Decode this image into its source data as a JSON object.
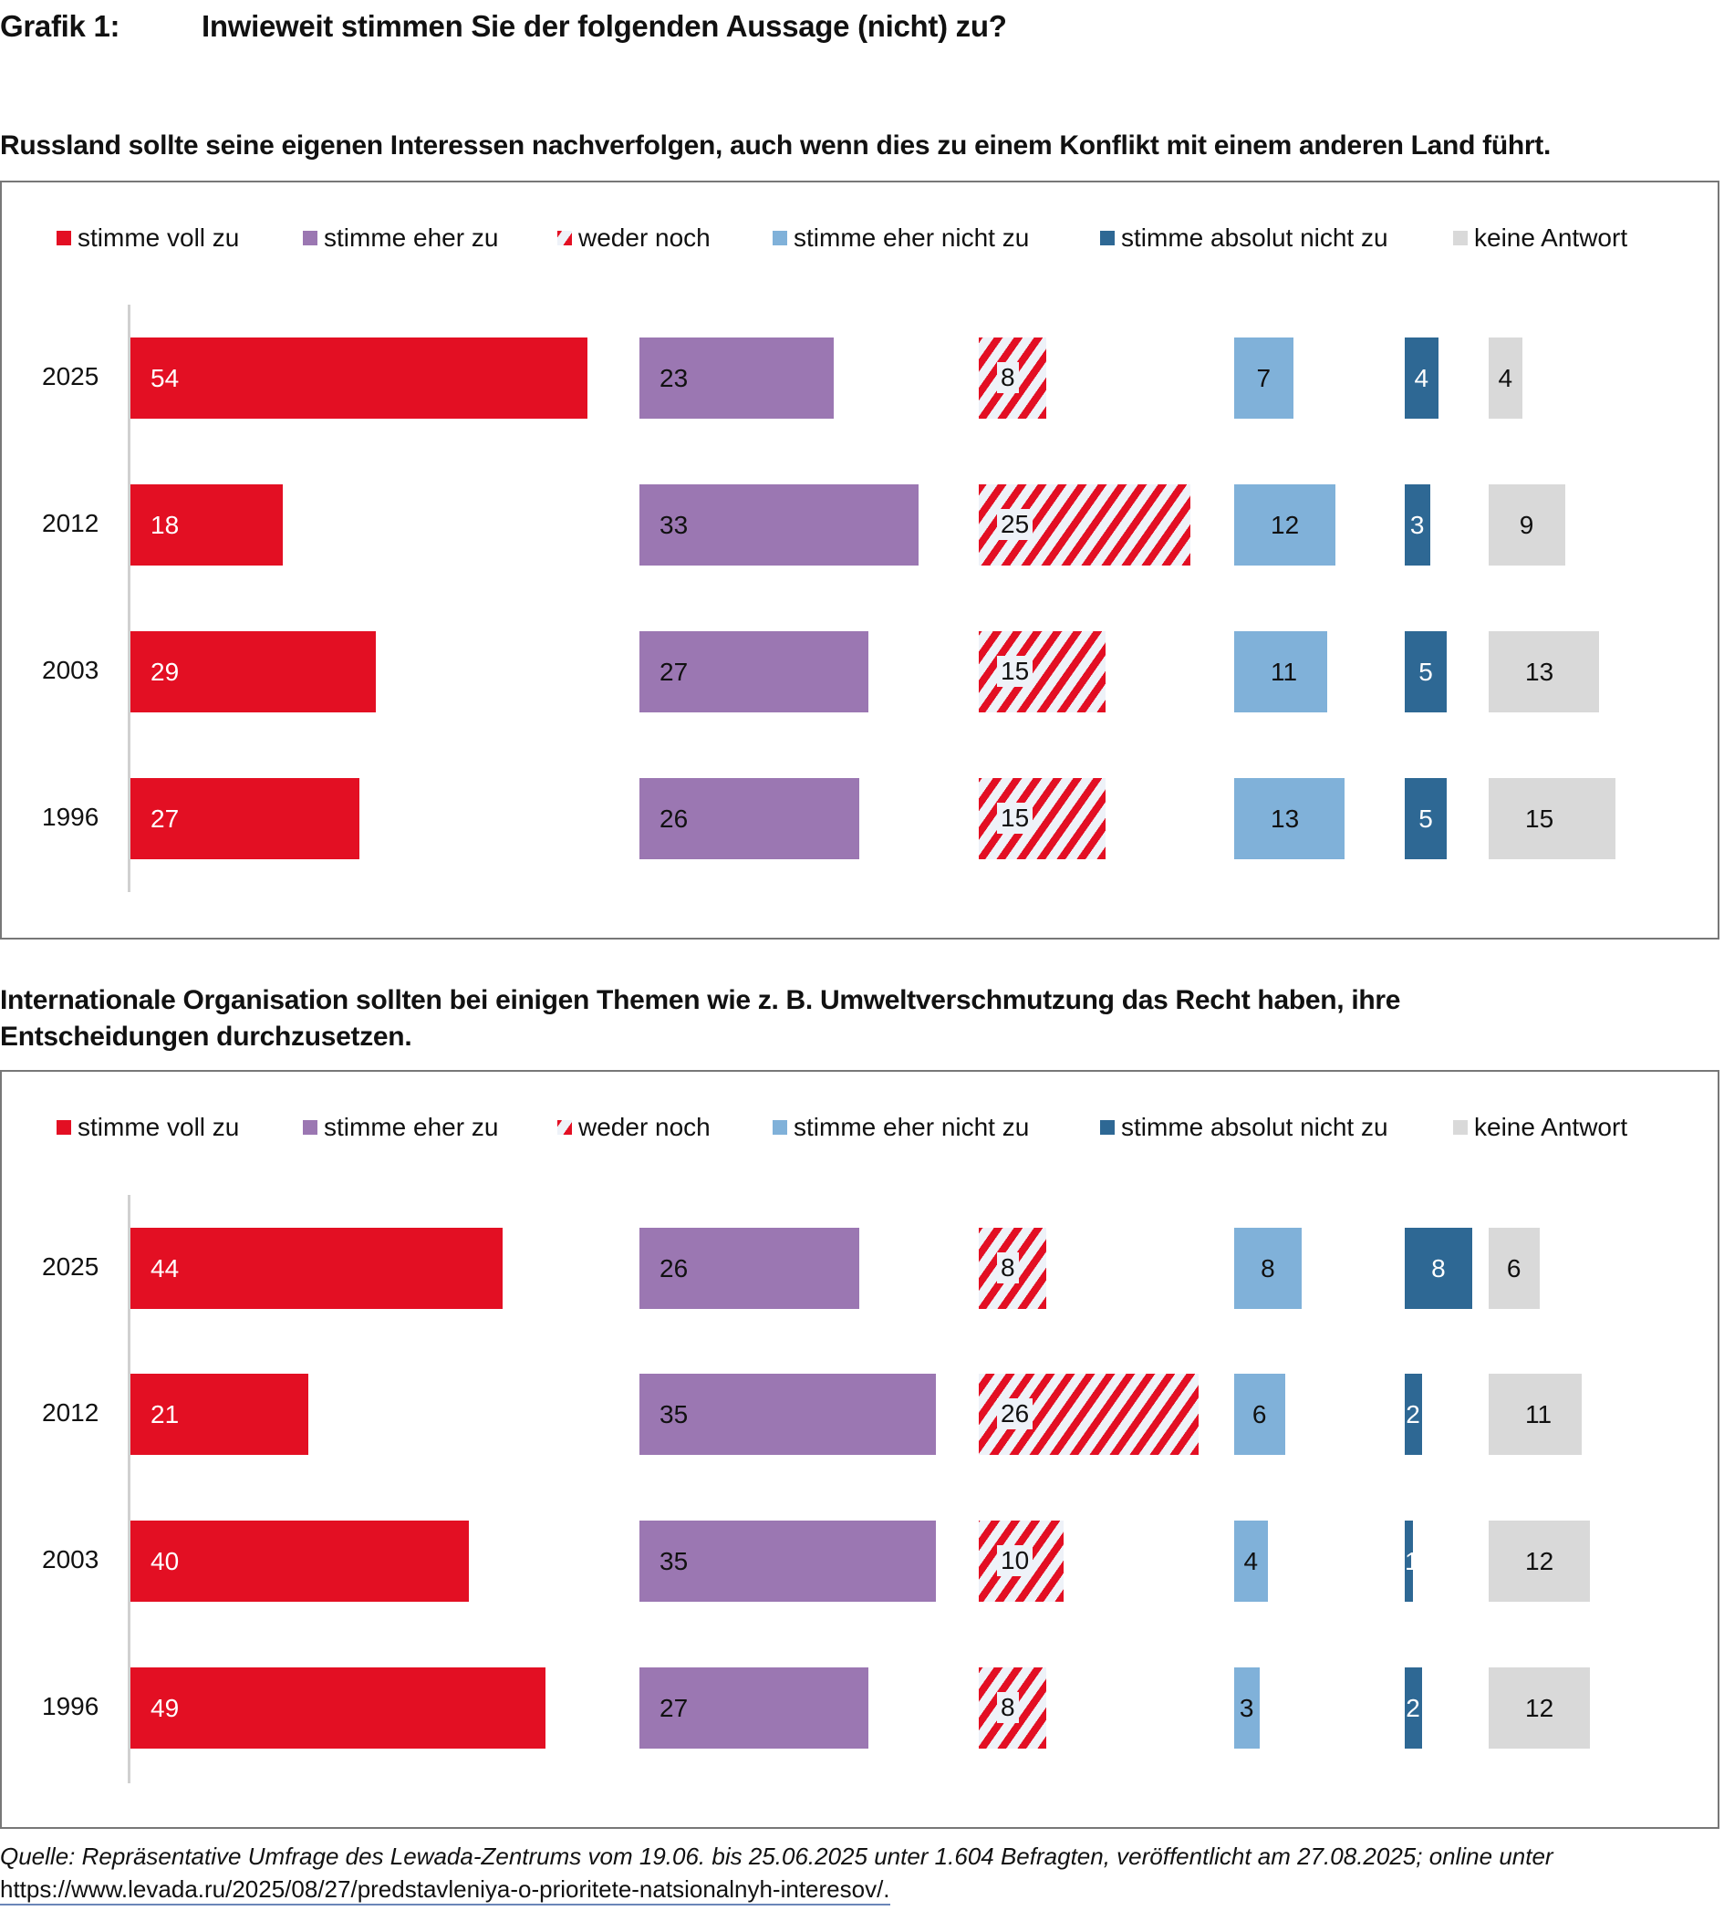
{
  "header": {
    "label": "Grafik 1:",
    "title": "Inwieweit stimmen Sie der folgenden Aussage (nicht) zu?"
  },
  "legend": [
    {
      "label": "stimme voll zu",
      "color": "#e30f23",
      "pattern": "solid"
    },
    {
      "label": "stimme eher zu",
      "color": "#9b77b2",
      "pattern": "solid"
    },
    {
      "label": "weder noch",
      "color": "#e30f23",
      "pattern": "hatch"
    },
    {
      "label": "stimme eher nicht zu",
      "color": "#80b1d9",
      "pattern": "solid"
    },
    {
      "label": "stimme absolut nicht zu",
      "color": "#2e6894",
      "pattern": "solid"
    },
    {
      "label": "keine Antwort",
      "color": "#d9d9d9",
      "pattern": "solid"
    }
  ],
  "label_colors": [
    "#ffffff",
    "#111111",
    "#111111",
    "#111111",
    "#ffffff",
    "#111111"
  ],
  "chart_data": [
    {
      "type": "bar",
      "orientation": "horizontal",
      "title": "Russland sollte seine eigenen Interessen nachverfolgen, auch wenn dies zu einem Konflikt mit einem anderen Land führt.",
      "categories": [
        "2025",
        "2012",
        "2003",
        "1996"
      ],
      "series": [
        {
          "name": "stimme voll zu",
          "values": [
            54,
            18,
            29,
            27
          ]
        },
        {
          "name": "stimme eher zu",
          "values": [
            23,
            33,
            27,
            26
          ]
        },
        {
          "name": "weder noch",
          "values": [
            8,
            25,
            15,
            15
          ]
        },
        {
          "name": "stimme eher nicht zu",
          "values": [
            7,
            12,
            11,
            13
          ]
        },
        {
          "name": "stimme absolut nicht zu",
          "values": [
            4,
            3,
            5,
            5
          ]
        },
        {
          "name": "keine Antwort",
          "values": [
            4,
            9,
            13,
            15
          ]
        }
      ],
      "unit": "%",
      "legend_position": "top",
      "grid": false
    },
    {
      "type": "bar",
      "orientation": "horizontal",
      "title": "Internationale Organisation sollten bei einigen Themen wie z. B. Umweltverschmutzung das Recht haben, ihre Entscheidungen durchzusetzen.",
      "title_lines": [
        "Internationale Organisation sollten bei einigen Themen wie z. B. Umweltverschmutzung das Recht haben, ihre",
        "Entscheidungen durchzusetzen."
      ],
      "categories": [
        "2025",
        "2012",
        "2003",
        "1996"
      ],
      "series": [
        {
          "name": "stimme voll zu",
          "values": [
            44,
            21,
            40,
            49
          ]
        },
        {
          "name": "stimme eher zu",
          "values": [
            26,
            35,
            35,
            27
          ]
        },
        {
          "name": "weder noch",
          "values": [
            8,
            26,
            10,
            8
          ]
        },
        {
          "name": "stimme eher nicht zu",
          "values": [
            8,
            6,
            4,
            3
          ]
        },
        {
          "name": "stimme absolut nicht zu",
          "values": [
            8,
            2,
            1,
            2
          ]
        },
        {
          "name": "keine Antwort",
          "values": [
            6,
            11,
            12,
            12
          ]
        }
      ],
      "unit": "%",
      "legend_position": "top",
      "grid": false
    }
  ],
  "footer": {
    "source": "Quelle: Repräsentative Umfrage des Lewada-Zentrums vom 19.06. bis 25.06.2025 unter 1.604 Befragten, veröffentlicht am 27.08.2025; online unter",
    "link": "https://www.levada.ru/2025/08/27/predstavleniya-o-prioritete-natsionalnyh-interesov/."
  }
}
